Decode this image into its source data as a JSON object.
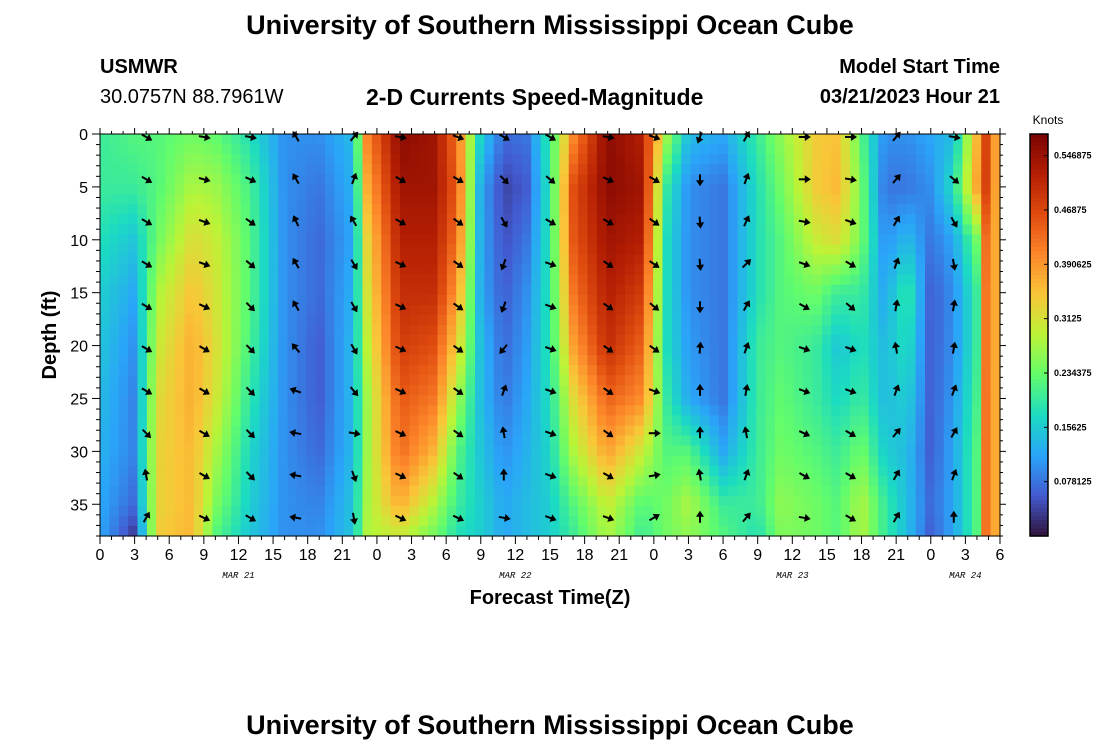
{
  "header": {
    "title": "University of Southern Mississippi Ocean Cube",
    "station": "USMWR",
    "coords": "30.0757N  88.7961W",
    "subtitle": "2-D Currents Speed-Magnitude",
    "model_start_label": "Model Start Time",
    "model_start_value": "03/21/2023 Hour 21"
  },
  "footer": {
    "title": "University of Southern Mississippi Ocean Cube"
  },
  "chart_data": {
    "type": "heatmap",
    "title": "2-D Currents Speed-Magnitude",
    "xlabel": "Forecast Time(Z)",
    "ylabel": "Depth (ft)",
    "ylim": [
      38,
      0
    ],
    "y_ticks": [
      0,
      5,
      10,
      15,
      20,
      25,
      30,
      35
    ],
    "x_range_hours": [
      0,
      78
    ],
    "x_tick_labels": [
      "0",
      "3",
      "6",
      "9",
      "12",
      "15",
      "18",
      "21",
      "0",
      "3",
      "6",
      "9",
      "12",
      "15",
      "18",
      "21",
      "0",
      "3",
      "6",
      "9",
      "12",
      "15",
      "18",
      "21",
      "0",
      "3",
      "6"
    ],
    "date_labels": [
      {
        "hour": 12,
        "label": "MAR 21"
      },
      {
        "hour": 36,
        "label": "MAR 22"
      },
      {
        "hour": 60,
        "label": "MAR 23"
      },
      {
        "hour": 75,
        "label": "MAR 24"
      }
    ],
    "colorbar": {
      "label": "Knots",
      "range": [
        0,
        0.578
      ],
      "ticks": [
        "0.546875",
        "0.46875",
        "0.390625",
        "0.3125",
        "0.234375",
        "0.15625",
        "0.078125"
      ],
      "tick_values": [
        0.546875,
        0.46875,
        0.390625,
        0.3125,
        0.234375,
        0.15625,
        0.078125
      ]
    },
    "speed_profile_depth_ft": [
      0,
      5,
      10,
      15,
      20,
      25,
      30,
      35,
      38
    ],
    "speed_profiles_knots": [
      {
        "hour": 0,
        "values": [
          0.2,
          0.2,
          0.18,
          0.16,
          0.15,
          0.14,
          0.13,
          0.12,
          0.12
        ]
      },
      {
        "hour": 3,
        "values": [
          0.22,
          0.2,
          0.15,
          0.12,
          0.1,
          0.09,
          0.09,
          0.07,
          0.03
        ]
      },
      {
        "hour": 5,
        "values": [
          0.22,
          0.22,
          0.24,
          0.28,
          0.3,
          0.32,
          0.33,
          0.33,
          0.34
        ]
      },
      {
        "hour": 8,
        "values": [
          0.24,
          0.28,
          0.32,
          0.35,
          0.37,
          0.37,
          0.36,
          0.36,
          0.36
        ]
      },
      {
        "hour": 10,
        "values": [
          0.23,
          0.27,
          0.3,
          0.31,
          0.32,
          0.31,
          0.28,
          0.25,
          0.22
        ]
      },
      {
        "hour": 13,
        "values": [
          0.18,
          0.21,
          0.22,
          0.22,
          0.21,
          0.19,
          0.17,
          0.16,
          0.15
        ]
      },
      {
        "hour": 16,
        "values": [
          0.1,
          0.1,
          0.1,
          0.1,
          0.1,
          0.1,
          0.1,
          0.1,
          0.1
        ]
      },
      {
        "hour": 19,
        "values": [
          0.1,
          0.08,
          0.07,
          0.07,
          0.06,
          0.06,
          0.07,
          0.09,
          0.1
        ]
      },
      {
        "hour": 22,
        "values": [
          0.14,
          0.13,
          0.12,
          0.13,
          0.14,
          0.14,
          0.14,
          0.15,
          0.15
        ]
      },
      {
        "hour": 23,
        "values": [
          0.4,
          0.36,
          0.32,
          0.3,
          0.28,
          0.26,
          0.26,
          0.27,
          0.28
        ]
      },
      {
        "hour": 26,
        "values": [
          0.56,
          0.54,
          0.52,
          0.5,
          0.48,
          0.45,
          0.43,
          0.37,
          0.3
        ]
      },
      {
        "hour": 29,
        "values": [
          0.54,
          0.54,
          0.52,
          0.5,
          0.46,
          0.42,
          0.36,
          0.28,
          0.24
        ]
      },
      {
        "hour": 31,
        "values": [
          0.42,
          0.44,
          0.42,
          0.38,
          0.33,
          0.27,
          0.22,
          0.2,
          0.18
        ]
      },
      {
        "hour": 33,
        "values": [
          0.16,
          0.12,
          0.12,
          0.12,
          0.14,
          0.14,
          0.15,
          0.16,
          0.16
        ]
      },
      {
        "hour": 35,
        "values": [
          0.07,
          0.04,
          0.05,
          0.06,
          0.07,
          0.08,
          0.1,
          0.12,
          0.12
        ]
      },
      {
        "hour": 37,
        "values": [
          0.08,
          0.06,
          0.08,
          0.1,
          0.11,
          0.12,
          0.13,
          0.14,
          0.14
        ]
      },
      {
        "hour": 39,
        "values": [
          0.2,
          0.19,
          0.19,
          0.19,
          0.19,
          0.18,
          0.17,
          0.16,
          0.16
        ]
      },
      {
        "hour": 41,
        "values": [
          0.4,
          0.46,
          0.45,
          0.42,
          0.38,
          0.32,
          0.28,
          0.22,
          0.2
        ]
      },
      {
        "hour": 44,
        "values": [
          0.56,
          0.56,
          0.54,
          0.52,
          0.5,
          0.44,
          0.38,
          0.3,
          0.28
        ]
      },
      {
        "hour": 47,
        "values": [
          0.52,
          0.54,
          0.52,
          0.48,
          0.44,
          0.4,
          0.3,
          0.22,
          0.2
        ]
      },
      {
        "hour": 49,
        "values": [
          0.28,
          0.2,
          0.18,
          0.18,
          0.18,
          0.2,
          0.22,
          0.24,
          0.24
        ]
      },
      {
        "hour": 51,
        "values": [
          0.14,
          0.1,
          0.1,
          0.1,
          0.11,
          0.12,
          0.22,
          0.28,
          0.26
        ]
      },
      {
        "hour": 54,
        "values": [
          0.12,
          0.08,
          0.08,
          0.08,
          0.08,
          0.08,
          0.12,
          0.2,
          0.22
        ]
      },
      {
        "hour": 57,
        "values": [
          0.2,
          0.18,
          0.18,
          0.18,
          0.2,
          0.2,
          0.2,
          0.2,
          0.18
        ]
      },
      {
        "hour": 59,
        "values": [
          0.26,
          0.24,
          0.22,
          0.22,
          0.22,
          0.23,
          0.24,
          0.26,
          0.25
        ]
      },
      {
        "hour": 62,
        "values": [
          0.34,
          0.34,
          0.3,
          0.24,
          0.2,
          0.2,
          0.22,
          0.24,
          0.24
        ]
      },
      {
        "hour": 64,
        "values": [
          0.35,
          0.36,
          0.32,
          0.2,
          0.15,
          0.17,
          0.2,
          0.22,
          0.22
        ]
      },
      {
        "hour": 66,
        "values": [
          0.22,
          0.24,
          0.24,
          0.2,
          0.18,
          0.2,
          0.24,
          0.28,
          0.28
        ]
      },
      {
        "hour": 68,
        "values": [
          0.1,
          0.08,
          0.1,
          0.12,
          0.14,
          0.14,
          0.16,
          0.2,
          0.2
        ]
      },
      {
        "hour": 70,
        "values": [
          0.1,
          0.08,
          0.14,
          0.2,
          0.18,
          0.16,
          0.14,
          0.14,
          0.14
        ]
      },
      {
        "hour": 72,
        "values": [
          0.12,
          0.1,
          0.08,
          0.06,
          0.06,
          0.06,
          0.06,
          0.07,
          0.06
        ]
      },
      {
        "hour": 74,
        "values": [
          0.14,
          0.18,
          0.12,
          0.1,
          0.1,
          0.11,
          0.12,
          0.12,
          0.12
        ]
      },
      {
        "hour": 76,
        "values": [
          0.36,
          0.38,
          0.24,
          0.2,
          0.2,
          0.21,
          0.22,
          0.22,
          0.22
        ]
      },
      {
        "hour": 77,
        "values": [
          0.5,
          0.5,
          0.48,
          0.48,
          0.48,
          0.48,
          0.48,
          0.48,
          0.48
        ]
      },
      {
        "hour": 78,
        "values": [
          0.3,
          0.3,
          0.3,
          0.3,
          0.3,
          0.3,
          0.3,
          0.3,
          0.3
        ]
      }
    ],
    "arrow_depths_ft": [
      0,
      4,
      8,
      12,
      16,
      20,
      24,
      28,
      32,
      36
    ],
    "arrow_direction_series_deg": [
      {
        "hour": 4,
        "dirs": [
          120,
          120,
          120,
          120,
          120,
          120,
          120,
          135,
          350,
          30
        ]
      },
      {
        "hour": 9,
        "dirs": [
          100,
          105,
          110,
          110,
          115,
          120,
          120,
          120,
          120,
          115
        ]
      },
      {
        "hour": 13,
        "dirs": [
          100,
          115,
          125,
          130,
          135,
          135,
          135,
          135,
          135,
          120
        ]
      },
      {
        "hour": 17,
        "dirs": [
          330,
          330,
          335,
          330,
          330,
          320,
          290,
          280,
          280,
          280
        ]
      },
      {
        "hour": 22,
        "dirs": [
          40,
          20,
          330,
          150,
          150,
          150,
          140,
          100,
          160,
          170
        ]
      },
      {
        "hour": 26,
        "dirs": [
          100,
          120,
          120,
          115,
          115,
          115,
          115,
          115,
          115,
          115
        ]
      },
      {
        "hour": 31,
        "dirs": [
          110,
          120,
          125,
          125,
          125,
          125,
          125,
          125,
          125,
          115
        ]
      },
      {
        "hour": 35,
        "dirs": [
          120,
          135,
          150,
          200,
          200,
          220,
          20,
          350,
          0,
          100
        ]
      },
      {
        "hour": 39,
        "dirs": [
          120,
          130,
          120,
          110,
          110,
          110,
          110,
          110,
          110,
          110
        ]
      },
      {
        "hour": 44,
        "dirs": [
          100,
          115,
          120,
          125,
          125,
          125,
          125,
          125,
          120,
          110
        ]
      },
      {
        "hour": 48,
        "dirs": [
          110,
          120,
          125,
          125,
          130,
          125,
          110,
          90,
          80,
          60
        ]
      },
      {
        "hour": 52,
        "dirs": [
          200,
          180,
          175,
          175,
          180,
          5,
          0,
          0,
          350,
          0
        ]
      },
      {
        "hour": 56,
        "dirs": [
          30,
          20,
          25,
          45,
          30,
          20,
          10,
          350,
          20,
          40
        ]
      },
      {
        "hour": 61,
        "dirs": [
          90,
          90,
          100,
          110,
          120,
          110,
          110,
          115,
          120,
          100
        ]
      },
      {
        "hour": 65,
        "dirs": [
          90,
          100,
          110,
          120,
          130,
          110,
          110,
          120,
          120,
          120
        ]
      },
      {
        "hour": 69,
        "dirs": [
          40,
          40,
          30,
          20,
          10,
          350,
          20,
          40,
          30,
          30
        ]
      },
      {
        "hour": 74,
        "dirs": [
          100,
          130,
          150,
          170,
          10,
          10,
          20,
          30,
          20,
          0
        ]
      }
    ]
  }
}
